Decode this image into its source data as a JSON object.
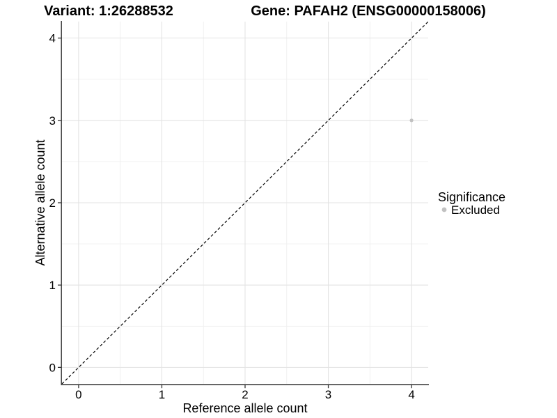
{
  "header": {
    "variant_title": "Variant: 1:26288532",
    "gene_title": "Gene: PAFAH2 (ENSG00000158006)"
  },
  "chart_data": {
    "type": "scatter",
    "title": "Variant: 1:26288532        Gene: PAFAH2 (ENSG00000158006)",
    "xlabel": "Reference allele count",
    "ylabel": "Alternative allele count",
    "xlim": [
      -0.2,
      4.2
    ],
    "ylim": [
      -0.2,
      4.2
    ],
    "xticks": [
      0,
      1,
      2,
      3,
      4
    ],
    "yticks": [
      0,
      1,
      2,
      3,
      4
    ],
    "grid": "major+minor",
    "minor_grid_step": 0.5,
    "series": [
      {
        "name": "Excluded",
        "color": "#c1c1c1",
        "points": [
          {
            "x": 4,
            "y": 3
          }
        ]
      }
    ],
    "reference_line": {
      "kind": "identity",
      "equation": "y = x",
      "style": "dashed",
      "color": "#000000"
    },
    "legend": {
      "title": "Significance",
      "position": "right",
      "entries": [
        {
          "label": "Excluded",
          "color": "#c1c1c1"
        }
      ]
    }
  },
  "colors": {
    "background": "#ffffff",
    "grid_major": "#e3e3e3",
    "grid_minor": "#efefef",
    "axis_line": "#333333",
    "text": "#000000"
  }
}
